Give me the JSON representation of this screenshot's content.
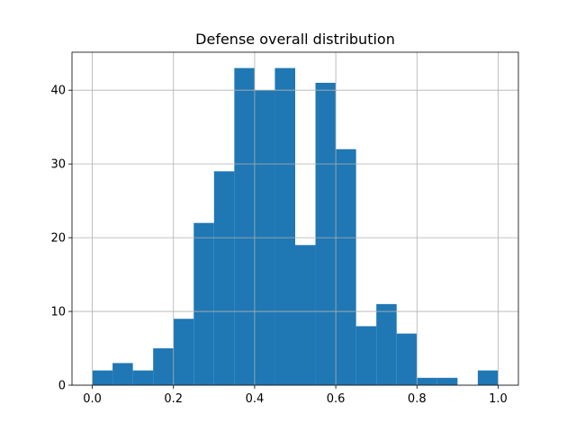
{
  "chart_data": {
    "type": "bar",
    "title": "Defense overall distribution",
    "xlabel": "",
    "ylabel": "",
    "bin_edges": [
      0.0,
      0.05,
      0.1,
      0.15,
      0.2,
      0.25,
      0.3,
      0.35,
      0.4,
      0.45,
      0.5,
      0.55,
      0.6,
      0.65,
      0.7,
      0.75,
      0.8,
      0.85,
      0.9,
      0.95,
      1.0
    ],
    "values": [
      2,
      3,
      2,
      5,
      9,
      22,
      29,
      43,
      40,
      43,
      19,
      41,
      32,
      8,
      11,
      7,
      1,
      1,
      0,
      2
    ],
    "xlim": [
      -0.05,
      1.05
    ],
    "ylim": [
      0,
      45.15
    ],
    "x_ticks": [
      0.0,
      0.2,
      0.4,
      0.6,
      0.8,
      1.0
    ],
    "x_tick_labels": [
      "0.0",
      "0.2",
      "0.4",
      "0.6",
      "0.8",
      "1.0"
    ],
    "y_ticks": [
      0,
      10,
      20,
      30,
      40
    ],
    "y_tick_labels": [
      "0",
      "10",
      "20",
      "30",
      "40"
    ],
    "grid": true,
    "bar_color": "#1f77b4"
  }
}
